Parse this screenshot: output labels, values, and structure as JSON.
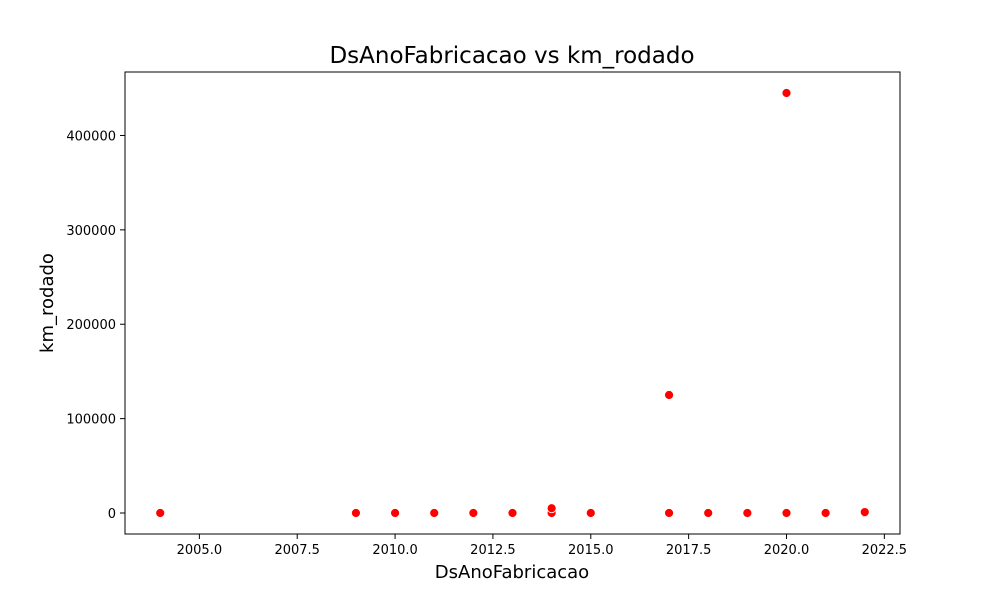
{
  "chart_data": {
    "type": "scatter",
    "title": "DsAnoFabricacao vs km_rodado",
    "xlabel": "DsAnoFabricacao",
    "ylabel": "km_rodado",
    "xlim": [
      2003.1,
      2022.9
    ],
    "ylim": [
      -22250,
      467250
    ],
    "xticks": [
      "2005.0",
      "2007.5",
      "2010.0",
      "2012.5",
      "2015.0",
      "2017.5",
      "2020.0",
      "2022.5"
    ],
    "yticks": [
      "0",
      "100000",
      "200000",
      "300000",
      "400000"
    ],
    "grid": false,
    "marker_color": "#ff0000",
    "points": [
      {
        "x": 2004,
        "y": 0
      },
      {
        "x": 2009,
        "y": 0
      },
      {
        "x": 2010,
        "y": 0
      },
      {
        "x": 2011,
        "y": 0
      },
      {
        "x": 2012,
        "y": 0
      },
      {
        "x": 2013,
        "y": 0
      },
      {
        "x": 2014,
        "y": 0
      },
      {
        "x": 2014,
        "y": 5000
      },
      {
        "x": 2015,
        "y": 0
      },
      {
        "x": 2017,
        "y": 0
      },
      {
        "x": 2017,
        "y": 125000
      },
      {
        "x": 2018,
        "y": 0
      },
      {
        "x": 2019,
        "y": 0
      },
      {
        "x": 2020,
        "y": 0
      },
      {
        "x": 2020,
        "y": 445000
      },
      {
        "x": 2021,
        "y": 0
      },
      {
        "x": 2022,
        "y": 0
      },
      {
        "x": 2022,
        "y": 1000
      }
    ]
  }
}
